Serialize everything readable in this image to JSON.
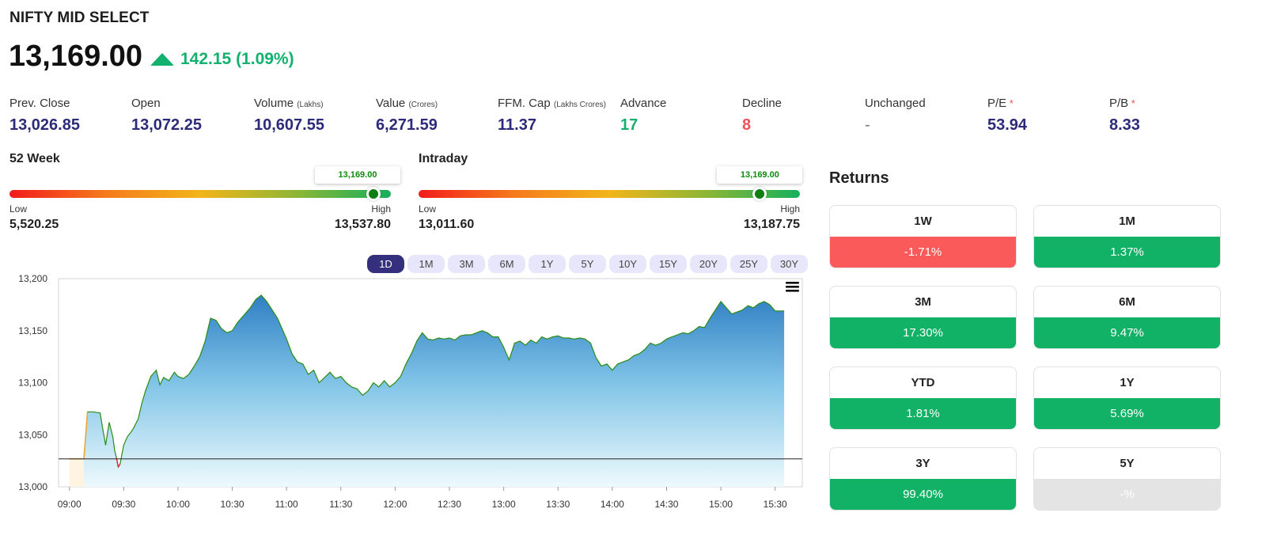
{
  "header": {
    "title": "NIFTY MID SELECT",
    "price": "13,169.00",
    "change": "142.15 (1.09%)"
  },
  "stats": [
    {
      "label": "Prev. Close",
      "unit": "",
      "value": "13,026.85",
      "tone": "default",
      "asterisk": false
    },
    {
      "label": "Open",
      "unit": "",
      "value": "13,072.25",
      "tone": "default",
      "asterisk": false
    },
    {
      "label": "Volume",
      "unit": "(Lakhs)",
      "value": "10,607.55",
      "tone": "default",
      "asterisk": false
    },
    {
      "label": "Value",
      "unit": "(Crores)",
      "value": "6,271.59",
      "tone": "default",
      "asterisk": false
    },
    {
      "label": "FFM. Cap",
      "unit": "(Lakhs Crores)",
      "value": "11.37",
      "tone": "default",
      "asterisk": false
    },
    {
      "label": "Advance",
      "unit": "",
      "value": "17",
      "tone": "green",
      "asterisk": false
    },
    {
      "label": "Decline",
      "unit": "",
      "value": "8",
      "tone": "red",
      "asterisk": false
    },
    {
      "label": "Unchanged",
      "unit": "",
      "value": "-",
      "tone": "grey",
      "asterisk": false
    },
    {
      "label": "P/E",
      "unit": "",
      "value": "53.94",
      "tone": "default",
      "asterisk": true
    },
    {
      "label": "P/B",
      "unit": "",
      "value": "8.33",
      "tone": "default",
      "asterisk": true
    }
  ],
  "range_52w": {
    "title": "52 Week",
    "current": "13,169.00",
    "low_label": "Low",
    "high_label": "High",
    "low": "5,520.25",
    "high": "13,537.80",
    "position": 0.954
  },
  "range_intraday": {
    "title": "Intraday",
    "current": "13,169.00",
    "low_label": "Low",
    "high_label": "High",
    "low": "13,011.60",
    "high": "13,187.75",
    "position": 0.895
  },
  "periods": [
    "1D",
    "1M",
    "3M",
    "6M",
    "1Y",
    "5Y",
    "10Y",
    "15Y",
    "20Y",
    "25Y",
    "30Y"
  ],
  "active_period": "1D",
  "chart_menu_icon": "hamburger-menu-icon",
  "chart_data": {
    "type": "area",
    "x_ticks": [
      "09:00",
      "09:30",
      "10:00",
      "10:30",
      "11:00",
      "11:30",
      "12:00",
      "12:30",
      "13:00",
      "13:30",
      "14:00",
      "14:30",
      "15:00",
      "15:30"
    ],
    "y_ticks": [
      "13,000",
      "13,050",
      "13,100",
      "13,150",
      "13,200"
    ],
    "ylim": [
      13000,
      13200
    ],
    "xlim": [
      "09:00",
      "15:45"
    ],
    "baseline": 13026.85,
    "series": [
      {
        "x": [
          "09:08",
          "09:10",
          "09:13",
          "09:17",
          "09:18",
          "09:20",
          "09:22",
          "09:24",
          "09:25",
          "09:26",
          "09:27",
          "09:28",
          "09:30",
          "09:32",
          "09:35",
          "09:38",
          "09:40",
          "09:42",
          "09:45",
          "09:48",
          "09:50",
          "09:52",
          "09:55",
          "09:58",
          "10:00",
          "10:03",
          "10:06",
          "10:09",
          "10:12",
          "10:15",
          "10:18",
          "10:21",
          "10:24",
          "10:27",
          "10:30",
          "10:33",
          "10:36",
          "10:40",
          "10:43",
          "10:46",
          "10:49",
          "10:52",
          "10:55",
          "10:58",
          "11:00",
          "11:03",
          "11:06",
          "11:09",
          "11:12",
          "11:15",
          "11:18",
          "11:21",
          "11:24",
          "11:27",
          "11:30",
          "11:33",
          "11:36",
          "11:39",
          "11:42",
          "11:45",
          "11:48",
          "11:51",
          "11:54",
          "11:57",
          "12:00",
          "12:03",
          "12:06",
          "12:09",
          "12:12",
          "12:15",
          "12:18",
          "12:21",
          "12:24",
          "12:27",
          "12:30",
          "12:33",
          "12:36",
          "12:39",
          "12:42",
          "12:45",
          "12:48",
          "12:51",
          "12:54",
          "12:57",
          "13:00",
          "13:03",
          "13:06",
          "13:09",
          "13:12",
          "13:15",
          "13:18",
          "13:21",
          "13:24",
          "13:27",
          "13:30",
          "13:33",
          "13:36",
          "13:39",
          "13:42",
          "13:45",
          "13:48",
          "13:51",
          "13:54",
          "13:57",
          "14:00",
          "14:03",
          "14:06",
          "14:09",
          "14:12",
          "14:15",
          "14:18",
          "14:21",
          "14:24",
          "14:27",
          "14:30",
          "14:33",
          "14:36",
          "14:39",
          "14:42",
          "14:45",
          "14:48",
          "14:51",
          "14:54",
          "14:57",
          "15:00",
          "15:03",
          "15:06",
          "15:09",
          "15:12",
          "15:15",
          "15:18",
          "15:21",
          "15:24",
          "15:27",
          "15:30",
          "15:35"
        ],
        "y": [
          13027,
          13072,
          13072,
          13071,
          13060,
          13040,
          13062,
          13048,
          13035,
          13028,
          13019,
          13022,
          13040,
          13048,
          13055,
          13065,
          13080,
          13092,
          13106,
          13112,
          13098,
          13105,
          13102,
          13110,
          13106,
          13104,
          13108,
          13116,
          13125,
          13140,
          13162,
          13160,
          13152,
          13148,
          13150,
          13158,
          13164,
          13172,
          13180,
          13184,
          13178,
          13170,
          13162,
          13150,
          13142,
          13128,
          13120,
          13118,
          13108,
          13112,
          13100,
          13105,
          13110,
          13104,
          13106,
          13100,
          13096,
          13094,
          13088,
          13092,
          13100,
          13096,
          13102,
          13096,
          13100,
          13106,
          13118,
          13128,
          13140,
          13148,
          13142,
          13141,
          13143,
          13142,
          13143,
          13141,
          13145,
          13146,
          13146,
          13148,
          13150,
          13148,
          13144,
          13144,
          13134,
          13122,
          13138,
          13140,
          13136,
          13141,
          13138,
          13144,
          13142,
          13144,
          13145,
          13143,
          13143,
          13142,
          13143,
          13142,
          13138,
          13124,
          13116,
          13118,
          13112,
          13118,
          13120,
          13122,
          13126,
          13128,
          13132,
          13138,
          13136,
          13138,
          13142,
          13144,
          13146,
          13148,
          13147,
          13150,
          13154,
          13153,
          13162,
          13170,
          13178,
          13172,
          13166,
          13168,
          13170,
          13174,
          13172,
          13176,
          13178,
          13175,
          13169,
          13169
        ]
      }
    ]
  },
  "returns": {
    "title": "Returns",
    "items": [
      {
        "label": "1W",
        "value": "-1.71%",
        "tone": "neg"
      },
      {
        "label": "1M",
        "value": "1.37%",
        "tone": "pos"
      },
      {
        "label": "3M",
        "value": "17.30%",
        "tone": "pos"
      },
      {
        "label": "6M",
        "value": "9.47%",
        "tone": "pos"
      },
      {
        "label": "YTD",
        "value": "1.81%",
        "tone": "pos"
      },
      {
        "label": "1Y",
        "value": "5.69%",
        "tone": "pos"
      },
      {
        "label": "3Y",
        "value": "99.40%",
        "tone": "pos"
      },
      {
        "label": "5Y",
        "value": "-%",
        "tone": "na"
      }
    ]
  },
  "colors": {
    "accent": "#34307d",
    "positive": "#13b06e",
    "negative": "#f0505a",
    "line": "#2a8c16"
  }
}
